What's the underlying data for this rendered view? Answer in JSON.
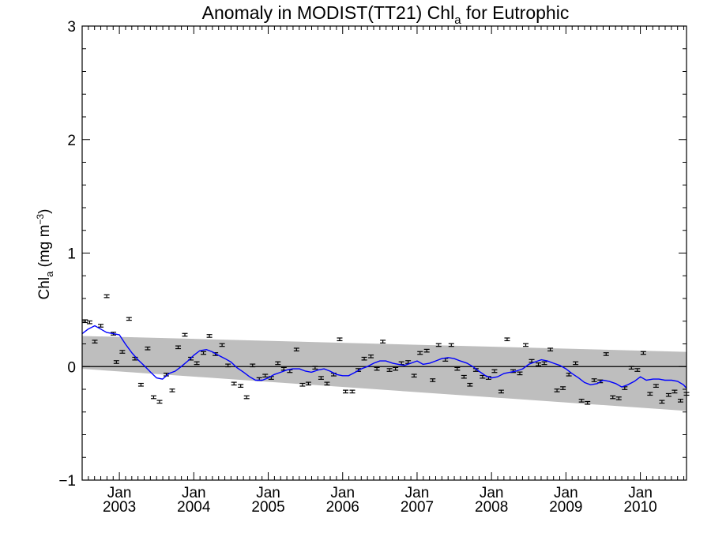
{
  "chart_data": {
    "type": "scatter",
    "title": "Anomaly in MODIST(TT21) Chl",
    "title_subscript": "a",
    "title_suffix": " for Eutrophic",
    "ylabel_main": "Chl",
    "ylabel_subscript": "a",
    "ylabel_units": " (mg m",
    "ylabel_units_sup": "−3",
    "ylabel_close": ")",
    "ylim": [
      -1.0,
      3.0
    ],
    "xlim": [
      2002.5,
      2010.62
    ],
    "y_ticks": [
      {
        "value": 3,
        "label": "3"
      },
      {
        "value": 2,
        "label": "2"
      },
      {
        "value": 1,
        "label": "1"
      },
      {
        "value": 0,
        "label": "0"
      },
      {
        "value": -1,
        "label": "−1"
      }
    ],
    "x_ticks": [
      {
        "value": 2003.0,
        "month": "Jan",
        "year": "2003"
      },
      {
        "value": 2004.0,
        "month": "Jan",
        "year": "2004"
      },
      {
        "value": 2005.0,
        "month": "Jan",
        "year": "2005"
      },
      {
        "value": 2006.0,
        "month": "Jan",
        "year": "2006"
      },
      {
        "value": 2007.0,
        "month": "Jan",
        "year": "2007"
      },
      {
        "value": 2008.0,
        "month": "Jan",
        "year": "2008"
      },
      {
        "value": 2009.0,
        "month": "Jan",
        "year": "2009"
      },
      {
        "value": 2010.0,
        "month": "Jan",
        "year": "2010"
      }
    ],
    "band": {
      "start": {
        "x": 2002.5,
        "upper": 0.27,
        "lower": -0.02
      },
      "end": {
        "x": 2010.62,
        "upper": 0.13,
        "lower": -0.39
      }
    },
    "zero_line": 0,
    "series": [
      {
        "kind": "points",
        "error": 0.012,
        "color": "#000000",
        "x": [
          2002.54,
          2002.6,
          2002.67,
          2002.75,
          2002.83,
          2002.92,
          2002.96,
          2003.04,
          2003.13,
          2003.21,
          2003.29,
          2003.38,
          2003.46,
          2003.54,
          2003.63,
          2003.71,
          2003.79,
          2003.88,
          2003.96,
          2004.04,
          2004.13,
          2004.21,
          2004.29,
          2004.38,
          2004.46,
          2004.54,
          2004.63,
          2004.71,
          2004.79,
          2004.88,
          2004.96,
          2005.04,
          2005.13,
          2005.21,
          2005.29,
          2005.38,
          2005.46,
          2005.54,
          2005.63,
          2005.71,
          2005.79,
          2005.88,
          2005.96,
          2006.04,
          2006.13,
          2006.21,
          2006.29,
          2006.38,
          2006.46,
          2006.54,
          2006.63,
          2006.71,
          2006.79,
          2006.88,
          2006.96,
          2007.04,
          2007.13,
          2007.21,
          2007.29,
          2007.38,
          2007.46,
          2007.54,
          2007.63,
          2007.71,
          2007.79,
          2007.88,
          2007.96,
          2008.04,
          2008.13,
          2008.21,
          2008.29,
          2008.38,
          2008.46,
          2008.54,
          2008.63,
          2008.71,
          2008.79,
          2008.88,
          2008.96,
          2009.04,
          2009.13,
          2009.21,
          2009.29,
          2009.38,
          2009.46,
          2009.54,
          2009.63,
          2009.71,
          2009.79,
          2009.88,
          2009.96,
          2010.04,
          2010.13,
          2010.21,
          2010.29,
          2010.38,
          2010.46,
          2010.54,
          2010.62
        ],
        "y": [
          0.4,
          0.39,
          0.22,
          0.36,
          0.62,
          0.29,
          0.04,
          0.13,
          0.42,
          0.07,
          -0.16,
          0.16,
          -0.27,
          -0.31,
          -0.07,
          -0.21,
          0.17,
          0.28,
          0.07,
          0.03,
          0.12,
          0.27,
          0.11,
          0.19,
          0.01,
          -0.15,
          -0.17,
          -0.27,
          0.01,
          -0.11,
          -0.08,
          -0.1,
          0.03,
          -0.02,
          -0.04,
          0.15,
          -0.16,
          -0.15,
          -0.01,
          -0.1,
          -0.15,
          -0.07,
          0.24,
          -0.22,
          -0.22,
          -0.03,
          0.07,
          0.09,
          -0.02,
          0.22,
          -0.03,
          -0.02,
          0.03,
          0.04,
          -0.08,
          0.12,
          0.14,
          -0.12,
          0.19,
          0.06,
          0.19,
          -0.02,
          -0.09,
          -0.16,
          -0.03,
          -0.09,
          -0.1,
          -0.04,
          -0.22,
          0.24,
          -0.04,
          -0.06,
          0.19,
          0.05,
          0.02,
          0.03,
          0.15,
          -0.21,
          -0.19,
          -0.07,
          0.03,
          -0.3,
          -0.32,
          -0.12,
          -0.13,
          0.11,
          -0.27,
          -0.28,
          -0.19,
          -0.01,
          -0.03,
          0.12,
          -0.24,
          -0.17,
          -0.31,
          -0.25,
          -0.22,
          -0.3,
          -0.24
        ]
      },
      {
        "kind": "line",
        "color": "#0000ff",
        "x": [
          2002.5,
          2002.58,
          2002.67,
          2002.75,
          2002.83,
          2002.92,
          2003.0,
          2003.08,
          2003.17,
          2003.25,
          2003.33,
          2003.42,
          2003.5,
          2003.58,
          2003.67,
          2003.75,
          2003.83,
          2003.92,
          2004.0,
          2004.08,
          2004.17,
          2004.25,
          2004.33,
          2004.42,
          2004.5,
          2004.58,
          2004.67,
          2004.75,
          2004.83,
          2004.92,
          2005.0,
          2005.08,
          2005.17,
          2005.25,
          2005.33,
          2005.42,
          2005.5,
          2005.58,
          2005.67,
          2005.75,
          2005.83,
          2005.92,
          2006.0,
          2006.08,
          2006.17,
          2006.25,
          2006.33,
          2006.42,
          2006.5,
          2006.58,
          2006.67,
          2006.75,
          2006.83,
          2006.92,
          2007.0,
          2007.08,
          2007.17,
          2007.25,
          2007.33,
          2007.42,
          2007.5,
          2007.58,
          2007.67,
          2007.75,
          2007.83,
          2007.92,
          2008.0,
          2008.08,
          2008.17,
          2008.25,
          2008.33,
          2008.42,
          2008.5,
          2008.58,
          2008.67,
          2008.75,
          2008.83,
          2008.92,
          2009.0,
          2009.08,
          2009.17,
          2009.25,
          2009.33,
          2009.42,
          2009.5,
          2009.58,
          2009.67,
          2009.75,
          2009.83,
          2009.92,
          2010.0,
          2010.08,
          2010.17,
          2010.25,
          2010.33,
          2010.42,
          2010.5,
          2010.58,
          2010.62
        ],
        "y": [
          0.29,
          0.33,
          0.36,
          0.33,
          0.3,
          0.29,
          0.28,
          0.2,
          0.12,
          0.06,
          0.01,
          -0.05,
          -0.1,
          -0.11,
          -0.06,
          -0.04,
          0.0,
          0.05,
          0.1,
          0.14,
          0.15,
          0.13,
          0.1,
          0.07,
          0.04,
          -0.01,
          -0.05,
          -0.09,
          -0.12,
          -0.12,
          -0.1,
          -0.07,
          -0.05,
          -0.03,
          -0.02,
          -0.02,
          -0.04,
          -0.05,
          -0.03,
          -0.02,
          -0.04,
          -0.07,
          -0.08,
          -0.08,
          -0.05,
          -0.02,
          0.0,
          0.03,
          0.05,
          0.05,
          0.03,
          0.02,
          0.01,
          0.03,
          0.05,
          0.02,
          0.03,
          0.05,
          0.07,
          0.08,
          0.07,
          0.05,
          0.03,
          0.0,
          -0.04,
          -0.08,
          -0.1,
          -0.09,
          -0.06,
          -0.05,
          -0.04,
          -0.02,
          0.02,
          0.04,
          0.06,
          0.05,
          0.03,
          0.01,
          -0.02,
          -0.06,
          -0.1,
          -0.14,
          -0.16,
          -0.15,
          -0.12,
          -0.13,
          -0.15,
          -0.18,
          -0.16,
          -0.13,
          -0.09,
          -0.12,
          -0.11,
          -0.11,
          -0.12,
          -0.12,
          -0.13,
          -0.16,
          -0.19
        ]
      }
    ],
    "grid": false,
    "legend": "none"
  }
}
